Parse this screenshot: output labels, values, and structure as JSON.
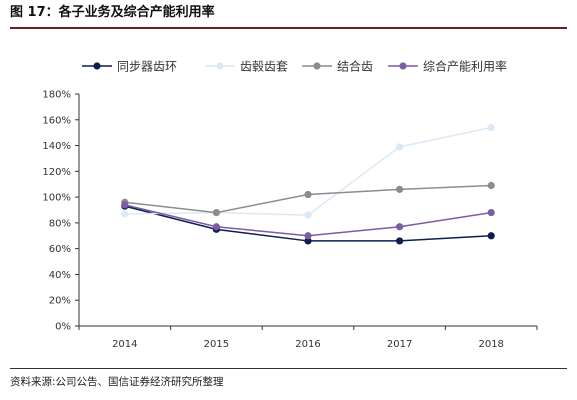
{
  "header": {
    "title": "图 17：各子业务及综合产能利用率"
  },
  "footer": {
    "source": "资料来源:公司公告、国信证券经济研究所整理"
  },
  "colors": {
    "title_rule": "#6b1f1f",
    "axis": "#333333"
  },
  "chart_data": {
    "type": "line",
    "title": "",
    "xlabel": "",
    "ylabel": "",
    "categories": [
      "2014",
      "2015",
      "2016",
      "2017",
      "2018"
    ],
    "ylim": [
      0,
      180
    ],
    "y_ticks": [
      0,
      20,
      40,
      60,
      80,
      100,
      120,
      140,
      160,
      180
    ],
    "y_tick_suffix": "%",
    "grid": false,
    "legend_position": "top",
    "series": [
      {
        "name": "同步器齿环",
        "color": "#0d1f4f",
        "values": [
          93,
          75,
          66,
          66,
          70
        ]
      },
      {
        "name": "齿毂齿套",
        "color": "#dce9f5",
        "values": [
          87,
          88,
          86,
          139,
          154
        ]
      },
      {
        "name": "结合齿",
        "color": "#8c8c8c",
        "values": [
          96,
          88,
          102,
          106,
          109
        ]
      },
      {
        "name": "综合产能利用率",
        "color": "#7c5ca3",
        "values": [
          94,
          77,
          70,
          77,
          88
        ]
      }
    ]
  }
}
